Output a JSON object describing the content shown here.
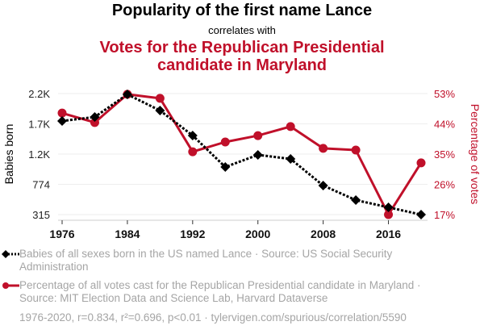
{
  "chart_data": {
    "type": "line",
    "title": "Popularity of the first name Lance",
    "subtitle": "correlates with",
    "title2": "Votes for the Republican Presidential candidate in Maryland",
    "x": [
      1976,
      1980,
      1984,
      1988,
      1992,
      1996,
      2000,
      2004,
      2008,
      2012,
      2016,
      2020
    ],
    "x_ticks": [
      "1976",
      "1984",
      "1992",
      "2000",
      "2008",
      "2016"
    ],
    "x_range": [
      1976,
      2020
    ],
    "grid": true,
    "legend_placement": "bottom",
    "left_axis": {
      "label": "Babies born",
      "ticks": [
        "2.2K",
        "1.7K",
        "1.2K",
        "774",
        "315"
      ],
      "tick_values": [
        2151,
        1692,
        1233,
        774,
        315
      ],
      "range": [
        315,
        2151
      ]
    },
    "right_axis": {
      "label": "Percentage of votes",
      "ticks": [
        "53%",
        "44%",
        "35%",
        "26%",
        "17%"
      ],
      "tick_values": [
        53,
        44,
        35,
        26,
        17
      ],
      "range": [
        17,
        53
      ]
    },
    "series": [
      {
        "name": "Babies of all sexes born in the US named Lance",
        "axis": "left",
        "color": "#000000",
        "style": "dotted",
        "marker": "diamond",
        "values": [
          1735,
          1796,
          2139,
          1894,
          1515,
          1037,
          1221,
          1160,
          756,
          535,
          425,
          315
        ]
      },
      {
        "name": "Percentage of all votes cast for the Republican Presidential candidate in Maryland",
        "axis": "right",
        "color": "#c0102a",
        "style": "solid",
        "marker": "circle",
        "values": [
          47.2,
          44.4,
          52.8,
          51.6,
          35.7,
          38.6,
          40.5,
          43.2,
          36.7,
          36.2,
          17.0,
          32.4
        ]
      }
    ]
  },
  "legend": {
    "item1": "Babies of all sexes born in the US named Lance · Source: US Social Security Administration",
    "item2": "Percentage of all votes cast for the Republican Presidential candidate in Maryland · Source: MIT Election Data and Science Lab, Harvard Dataverse"
  },
  "footer": "1976-2020, r=0.834, r²=0.696, p<0.01 · tylervigen.com/spurious/correlation/5590",
  "colors": {
    "accent": "#c0102a",
    "legend_text": "#a5a5a5"
  }
}
